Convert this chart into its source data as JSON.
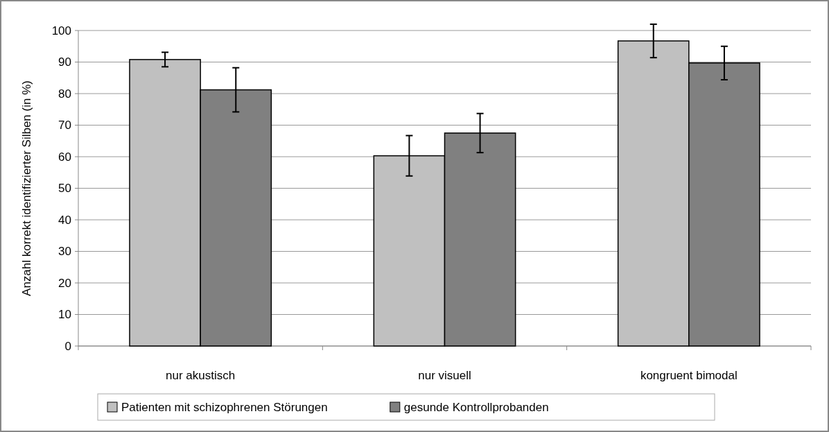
{
  "chart_data": {
    "type": "bar",
    "ylabel": "Anzahl korrekt identifizierter Silben (in %)",
    "categories": [
      "nur akustisch",
      "nur visuell",
      "kongruent bimodal"
    ],
    "series": [
      {
        "name": "Patienten mit schizophrenen Störungen",
        "color": "#c0c0c0",
        "values": [
          90.8,
          60.3,
          96.7
        ],
        "errors": [
          2.3,
          6.4,
          5.3
        ]
      },
      {
        "name": "gesunde Kontrollprobanden",
        "color": "#808080",
        "values": [
          81.2,
          67.5,
          89.7
        ],
        "errors": [
          7,
          6.2,
          5.3
        ]
      }
    ],
    "ylim": [
      0,
      100
    ],
    "yticks": [
      0,
      10,
      20,
      30,
      40,
      50,
      60,
      70,
      80,
      90,
      100
    ],
    "grid": "y",
    "legend": "bottom"
  }
}
